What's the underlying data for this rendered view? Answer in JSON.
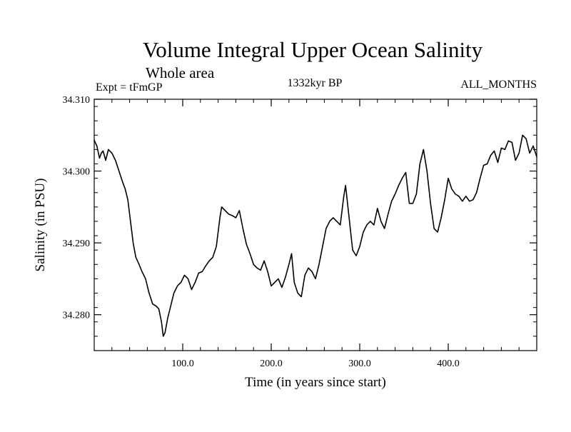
{
  "chart_data": {
    "type": "line",
    "title": "Volume Integral Upper Ocean Salinity",
    "subtitle": "Whole area",
    "experiment_label": "Expt = tFmGP",
    "period_label": "1332kyr BP",
    "months_label": "ALL_MONTHS",
    "xlabel": "Time (in years since start)",
    "ylabel": "Salinity (in PSU)",
    "xlim": [
      0,
      500
    ],
    "ylim": [
      34.275,
      34.31
    ],
    "x_ticks": [
      {
        "value": 100,
        "label": "100.0"
      },
      {
        "value": 200,
        "label": "200.0"
      },
      {
        "value": 300,
        "label": "300.0"
      },
      {
        "value": 400,
        "label": "400.0"
      }
    ],
    "y_ticks": [
      {
        "value": 34.28,
        "label": "34.280"
      },
      {
        "value": 34.29,
        "label": "34.290"
      },
      {
        "value": 34.3,
        "label": "34.300"
      },
      {
        "value": 34.31,
        "label": "34.310"
      }
    ],
    "x_minor_step": 20,
    "y_minor_step": 0.002,
    "grid": false,
    "series": [
      {
        "name": "Salinity",
        "color": "#000000",
        "x": [
          0,
          3,
          6,
          8,
          10,
          13,
          16,
          20,
          24,
          28,
          32,
          35,
          38,
          41,
          44,
          47,
          50,
          54,
          58,
          62,
          66,
          70,
          73,
          76,
          78,
          80,
          83,
          86,
          90,
          94,
          98,
          102,
          106,
          110,
          114,
          118,
          122,
          126,
          130,
          134,
          138,
          142,
          144,
          148,
          152,
          156,
          160,
          164,
          168,
          172,
          176,
          180,
          184,
          188,
          192,
          196,
          200,
          204,
          208,
          212,
          216,
          220,
          223,
          226,
          230,
          234,
          238,
          242,
          246,
          250,
          254,
          258,
          262,
          266,
          270,
          274,
          278,
          282,
          284,
          288,
          292,
          296,
          300,
          304,
          308,
          312,
          316,
          320,
          324,
          328,
          332,
          336,
          340,
          344,
          348,
          352,
          356,
          360,
          364,
          368,
          372,
          376,
          380,
          384,
          388,
          392,
          396,
          400,
          404,
          408,
          412,
          416,
          420,
          424,
          428,
          432,
          436,
          440,
          444,
          448,
          452,
          456,
          460,
          464,
          468,
          472,
          476,
          480,
          484,
          488,
          492,
          496,
          500
        ],
        "values": [
          34.3043,
          34.3035,
          34.3018,
          34.3025,
          34.3028,
          34.3015,
          34.303,
          34.3025,
          34.3015,
          34.3,
          34.2985,
          34.2975,
          34.296,
          34.293,
          34.29,
          34.288,
          34.2872,
          34.286,
          34.285,
          34.283,
          34.2815,
          34.2812,
          34.2808,
          34.279,
          34.277,
          34.2775,
          34.2795,
          34.281,
          34.283,
          34.284,
          34.2845,
          34.2855,
          34.285,
          34.2835,
          34.2845,
          34.2858,
          34.286,
          34.2868,
          34.2875,
          34.288,
          34.2895,
          34.2935,
          34.295,
          34.2945,
          34.294,
          34.2938,
          34.2935,
          34.2945,
          34.292,
          34.2898,
          34.2885,
          34.287,
          34.2865,
          34.2862,
          34.2875,
          34.286,
          34.284,
          34.2845,
          34.285,
          34.2838,
          34.2852,
          34.287,
          34.2885,
          34.2845,
          34.283,
          34.2825,
          34.2855,
          34.2865,
          34.286,
          34.285,
          34.287,
          34.2895,
          34.292,
          34.293,
          34.2935,
          34.293,
          34.2925,
          34.2965,
          34.298,
          34.2935,
          34.289,
          34.2882,
          34.2895,
          34.2915,
          34.2925,
          34.293,
          34.2925,
          34.2948,
          34.293,
          34.292,
          34.294,
          34.2958,
          34.2968,
          34.298,
          34.299,
          34.2998,
          34.2955,
          34.2955,
          34.2968,
          34.301,
          34.303,
          34.3,
          34.2955,
          34.292,
          34.2915,
          34.2935,
          34.296,
          34.299,
          34.2975,
          34.2968,
          34.2965,
          34.2958,
          34.2965,
          34.2958,
          34.296,
          34.297,
          34.299,
          34.3008,
          34.301,
          34.3022,
          34.3028,
          34.3012,
          34.3032,
          34.303,
          34.3042,
          34.304,
          34.3015,
          34.3025,
          34.305,
          34.3045,
          34.3025,
          34.3035,
          34.302
        ]
      }
    ]
  }
}
